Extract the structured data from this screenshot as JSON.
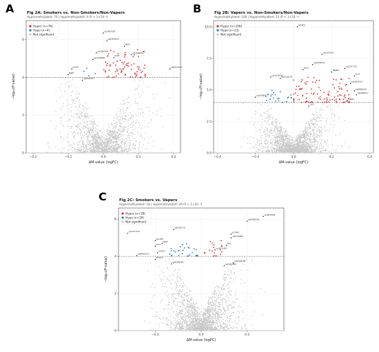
{
  "chart_data": [
    {
      "id": "A",
      "type": "scatter",
      "panel_letter": "A",
      "title": "Fig 2A: Smokers vs. Non-Smokers/Non-Vapers",
      "subtitle": "Hypermethylated: 76 | Hypomethylated: 4  (P < 1×10⁻⁴)",
      "xlabel": "ΔM-value (logFC)",
      "ylabel": "−log₁₀(P-value)",
      "xlim": [
        -0.22,
        0.22
      ],
      "ylim": [
        0,
        7
      ],
      "xticks": [
        -0.2,
        -0.1,
        0.0,
        0.1,
        0.2
      ],
      "xtick_labels": [
        "−0.2",
        "−0.1",
        "0.0",
        "0.1",
        "0.2"
      ],
      "yticks": [
        0,
        2,
        4,
        6
      ],
      "threshold": 4,
      "grid": true,
      "legend": "top-left",
      "legend_entries": [
        {
          "label": "Hyper (n=76)",
          "color": "#d62728"
        },
        {
          "label": "Hypo  (n=4)",
          "color": "#1f77b4"
        },
        {
          "label": "Not significant",
          "color": "#c7c7c7"
        }
      ],
      "cloud": {
        "spread": 0.055,
        "n": 1600
      },
      "hyper": {
        "n": 76,
        "x_range": [
          0.0,
          0.12
        ],
        "y_range": [
          4.0,
          5.5
        ]
      },
      "hypo": {
        "n": 4,
        "x_range": [
          -0.07,
          -0.02
        ],
        "y_range": [
          4.0,
          4.5
        ]
      },
      "labels": [
        {
          "text": "cg23667585",
          "x": 0.0,
          "y": 6.4
        },
        {
          "text": "cg05480610",
          "x": 0.01,
          "y": 6.0
        },
        {
          "text": "PDE4",
          "x": 0.06,
          "y": 5.7
        },
        {
          "text": "cg12803460",
          "x": -0.02,
          "y": 5.35
        },
        {
          "text": "cg13692661",
          "x": 0.08,
          "y": 5.25
        },
        {
          "text": "PCMT",
          "x": 0.03,
          "y": 5.1
        },
        {
          "text": "cg14508660",
          "x": -0.03,
          "y": 5.0
        },
        {
          "text": "cg00634534",
          "x": 0.19,
          "y": 4.5
        },
        {
          "text": "AGAP1",
          "x": -0.09,
          "y": 4.5
        },
        {
          "text": "GSEA",
          "x": 0.04,
          "y": 4.4
        },
        {
          "text": "NBPF",
          "x": -0.1,
          "y": 4.2
        },
        {
          "text": "cg10491547",
          "x": -0.06,
          "y": 3.9
        }
      ]
    },
    {
      "id": "B",
      "type": "scatter",
      "panel_letter": "B",
      "title": "Fig 2B: Vapers vs. Non-Smokers/Non-Vapers",
      "subtitle": "Hypermethylated: 106 | Hypomethylated: 23  (P < 1×10⁻⁴)",
      "xlabel": "ΔM-value (logFC)",
      "ylabel": "−log₁₀(P-value)",
      "xlim": [
        -0.42,
        0.42
      ],
      "ylim": [
        0,
        10.5
      ],
      "xticks": [
        -0.4,
        -0.2,
        0.0,
        0.2,
        0.4
      ],
      "xtick_labels": [
        "−0.4",
        "−0.2",
        "0.0",
        "0.2",
        "0.4"
      ],
      "yticks": [
        0,
        2.5,
        5.0,
        7.5,
        10.0
      ],
      "ytick_labels": [
        "0.0",
        "2.5",
        "5.0",
        "7.5",
        "10.0"
      ],
      "threshold": 4,
      "grid": true,
      "legend": "top-left",
      "legend_entries": [
        {
          "label": "Hyper (n=106)",
          "color": "#d62728"
        },
        {
          "label": "Hypo  (n=23)",
          "color": "#1f77b4"
        },
        {
          "label": "Not significant",
          "color": "#c7c7c7"
        }
      ],
      "cloud": {
        "spread": 0.09,
        "n": 1800
      },
      "hyper": {
        "n": 106,
        "x_range": [
          0.0,
          0.3
        ],
        "y_range": [
          4.0,
          6.0
        ]
      },
      "hypo": {
        "n": 23,
        "x_range": [
          -0.15,
          -0.01
        ],
        "y_range": [
          4.0,
          5.0
        ]
      },
      "labels": [
        {
          "text": "CRYBG3",
          "x": 0.02,
          "y": 10.1
        },
        {
          "text": "cg01215557",
          "x": 0.15,
          "y": 7.9
        },
        {
          "text": "cg09438118",
          "x": 0.1,
          "y": 7.1
        },
        {
          "text": "NALA",
          "x": 0.05,
          "y": 6.7
        },
        {
          "text": "cg13077791",
          "x": 0.27,
          "y": 6.8
        },
        {
          "text": "TMEM8",
          "x": 0.2,
          "y": 6.5
        },
        {
          "text": "KLC2",
          "x": 0.32,
          "y": 6.2
        },
        {
          "text": "cg26135098",
          "x": -0.12,
          "y": 6.1
        },
        {
          "text": "cg07183724",
          "x": -0.07,
          "y": 6.0
        },
        {
          "text": "cg18209713",
          "x": 0.3,
          "y": 5.6
        },
        {
          "text": "cg08800316",
          "x": 0.32,
          "y": 5.0
        },
        {
          "text": "cg09088117",
          "x": 0.33,
          "y": 4.7
        },
        {
          "text": "cg02588012",
          "x": -0.2,
          "y": 4.5
        },
        {
          "text": "PSMB4",
          "x": 0.28,
          "y": 4.2
        },
        {
          "text": "TLL3",
          "x": 0.08,
          "y": 3.8
        }
      ]
    },
    {
      "id": "C",
      "type": "scatter",
      "panel_letter": "C",
      "title": "Fig 2C: Smokers vs. Vapers",
      "subtitle": "Hypermethylated: 18 | Hypomethylated: 29  (P < 1×10⁻⁴)",
      "xlabel": "ΔM-value (logFC)",
      "ylabel": "−log₁₀(P-value)",
      "xlim": [
        -0.36,
        0.36
      ],
      "ylim": [
        0,
        6.6
      ],
      "xticks": [
        -0.2,
        0.0,
        0.2
      ],
      "xtick_labels": [
        "−0.2",
        "0.0",
        "0.2"
      ],
      "yticks": [
        0,
        2,
        4,
        6
      ],
      "threshold": 4,
      "grid": true,
      "legend": "top-left",
      "legend_entries": [
        {
          "label": "Hyper (n=18)",
          "color": "#d62728"
        },
        {
          "label": "Hypo  (n=29)",
          "color": "#1f77b4"
        },
        {
          "label": "Not significant",
          "color": "#c7c7c7"
        }
      ],
      "cloud": {
        "spread": 0.08,
        "n": 1800
      },
      "hyper": {
        "n": 18,
        "x_range": [
          0.01,
          0.09
        ],
        "y_range": [
          4.0,
          4.9
        ]
      },
      "hypo": {
        "n": 29,
        "x_range": [
          -0.15,
          -0.01
        ],
        "y_range": [
          4.0,
          4.8
        ]
      },
      "labels": [
        {
          "text": "cg18815566",
          "x": 0.27,
          "y": 6.2
        },
        {
          "text": "cg16982226",
          "x": 0.2,
          "y": 5.95
        },
        {
          "text": "cg01981731",
          "x": -0.12,
          "y": 5.5
        },
        {
          "text": "cg12727122",
          "x": -0.32,
          "y": 5.3
        },
        {
          "text": "GALNT9",
          "x": -0.2,
          "y": 4.9
        },
        {
          "text": "MEST",
          "x": -0.17,
          "y": 4.75
        },
        {
          "text": "RLC1",
          "x": -0.2,
          "y": 4.6
        },
        {
          "text": "GALNT1",
          "x": -0.19,
          "y": 4.25
        },
        {
          "text": "cg04605351",
          "x": -0.28,
          "y": 4.1
        },
        {
          "text": "SPOCK1",
          "x": -0.2,
          "y": 3.9
        },
        {
          "text": "cg06398388",
          "x": -0.13,
          "y": 3.65
        },
        {
          "text": "cg02589786",
          "x": 0.14,
          "y": 3.7
        },
        {
          "text": "cg03864956",
          "x": 0.1,
          "y": 3.55
        },
        {
          "text": "SLITRK3",
          "x": 0.13,
          "y": 5.25
        },
        {
          "text": "cg05749859",
          "x": 0.13,
          "y": 5.05
        },
        {
          "text": "RIF1",
          "x": 0.11,
          "y": 4.65
        },
        {
          "text": "cg10223481",
          "x": 0.06,
          "y": 4.4
        }
      ]
    }
  ]
}
